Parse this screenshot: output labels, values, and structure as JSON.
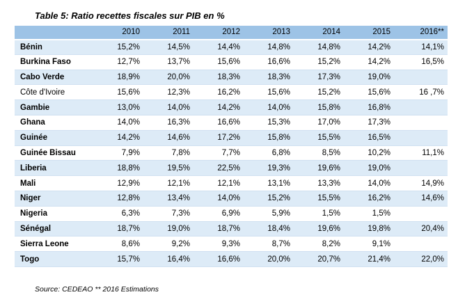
{
  "title": "Table 5: Ratio recettes fiscales sur PIB en %",
  "header": [
    "",
    "2010",
    "2011",
    "2012",
    "2013",
    "2014",
    "2015",
    "2016**"
  ],
  "rows": [
    {
      "country": "Bénin",
      "bold": true,
      "values": [
        "15,2%",
        "14,5%",
        "14,4%",
        "14,8%",
        "14,8%",
        "14,2%",
        "14,1%"
      ]
    },
    {
      "country": "Burkina Faso",
      "bold": true,
      "values": [
        "12,7%",
        "13,7%",
        "15,6%",
        "16,6%",
        "15,2%",
        "14,2%",
        "16,5%"
      ]
    },
    {
      "country": "Cabo Verde",
      "bold": true,
      "values": [
        "18,9%",
        "20,0%",
        "18,3%",
        "18,3%",
        "17,3%",
        "19,0%",
        ""
      ]
    },
    {
      "country": "Côte d'Ivoire",
      "bold": false,
      "values": [
        "15,6%",
        "12,3%",
        "16,2%",
        "15,6%",
        "15,2%",
        "15,6%",
        "16 ,7%"
      ]
    },
    {
      "country": "Gambie",
      "bold": true,
      "values": [
        "13,0%",
        "14,0%",
        "14,2%",
        "14,0%",
        "15,8%",
        "16,8%",
        ""
      ]
    },
    {
      "country": "Ghana",
      "bold": true,
      "values": [
        "14,0%",
        "16,3%",
        "16,6%",
        "15,3%",
        "17,0%",
        "17,3%",
        ""
      ]
    },
    {
      "country": "Guinée",
      "bold": true,
      "values": [
        "14,2%",
        "14,6%",
        "17,2%",
        "15,8%",
        "15,5%",
        "16,5%",
        ""
      ]
    },
    {
      "country": "Guinée Bissau",
      "bold": true,
      "values": [
        "7,9%",
        "7,8%",
        "7,7%",
        "6,8%",
        "8,5%",
        "10,2%",
        "11,1%"
      ]
    },
    {
      "country": "Liberia",
      "bold": true,
      "values": [
        "18,8%",
        "19,5%",
        "22,5%",
        "19,3%",
        "19,6%",
        "19,0%",
        ""
      ]
    },
    {
      "country": "Mali",
      "bold": true,
      "values": [
        "12,9%",
        "12,1%",
        "12,1%",
        "13,1%",
        "13,3%",
        "14,0%",
        "14,9%"
      ]
    },
    {
      "country": "Niger",
      "bold": true,
      "values": [
        "12,8%",
        "13,4%",
        "14,0%",
        "15,2%",
        "15,5%",
        "16,2%",
        "14,6%"
      ]
    },
    {
      "country": "Nigeria",
      "bold": true,
      "values": [
        "6,3%",
        "7,3%",
        "6,9%",
        "5,9%",
        "1,5%",
        "1,5%",
        ""
      ]
    },
    {
      "country": "Sénégal",
      "bold": true,
      "values": [
        "18,7%",
        "19,0%",
        "18,7%",
        "18,4%",
        "19,6%",
        "19,8%",
        "20,4%"
      ]
    },
    {
      "country": "Sierra Leone",
      "bold": true,
      "values": [
        "8,6%",
        "9,2%",
        "9,3%",
        "8,7%",
        "8,2%",
        "9,1%",
        ""
      ]
    },
    {
      "country": "Togo",
      "bold": true,
      "values": [
        "15,7%",
        "16,4%",
        "16,6%",
        "20,0%",
        "20,7%",
        "21,4%",
        "22,0%"
      ]
    }
  ],
  "source": "Source: CEDEAO  ** 2016 Estimations"
}
